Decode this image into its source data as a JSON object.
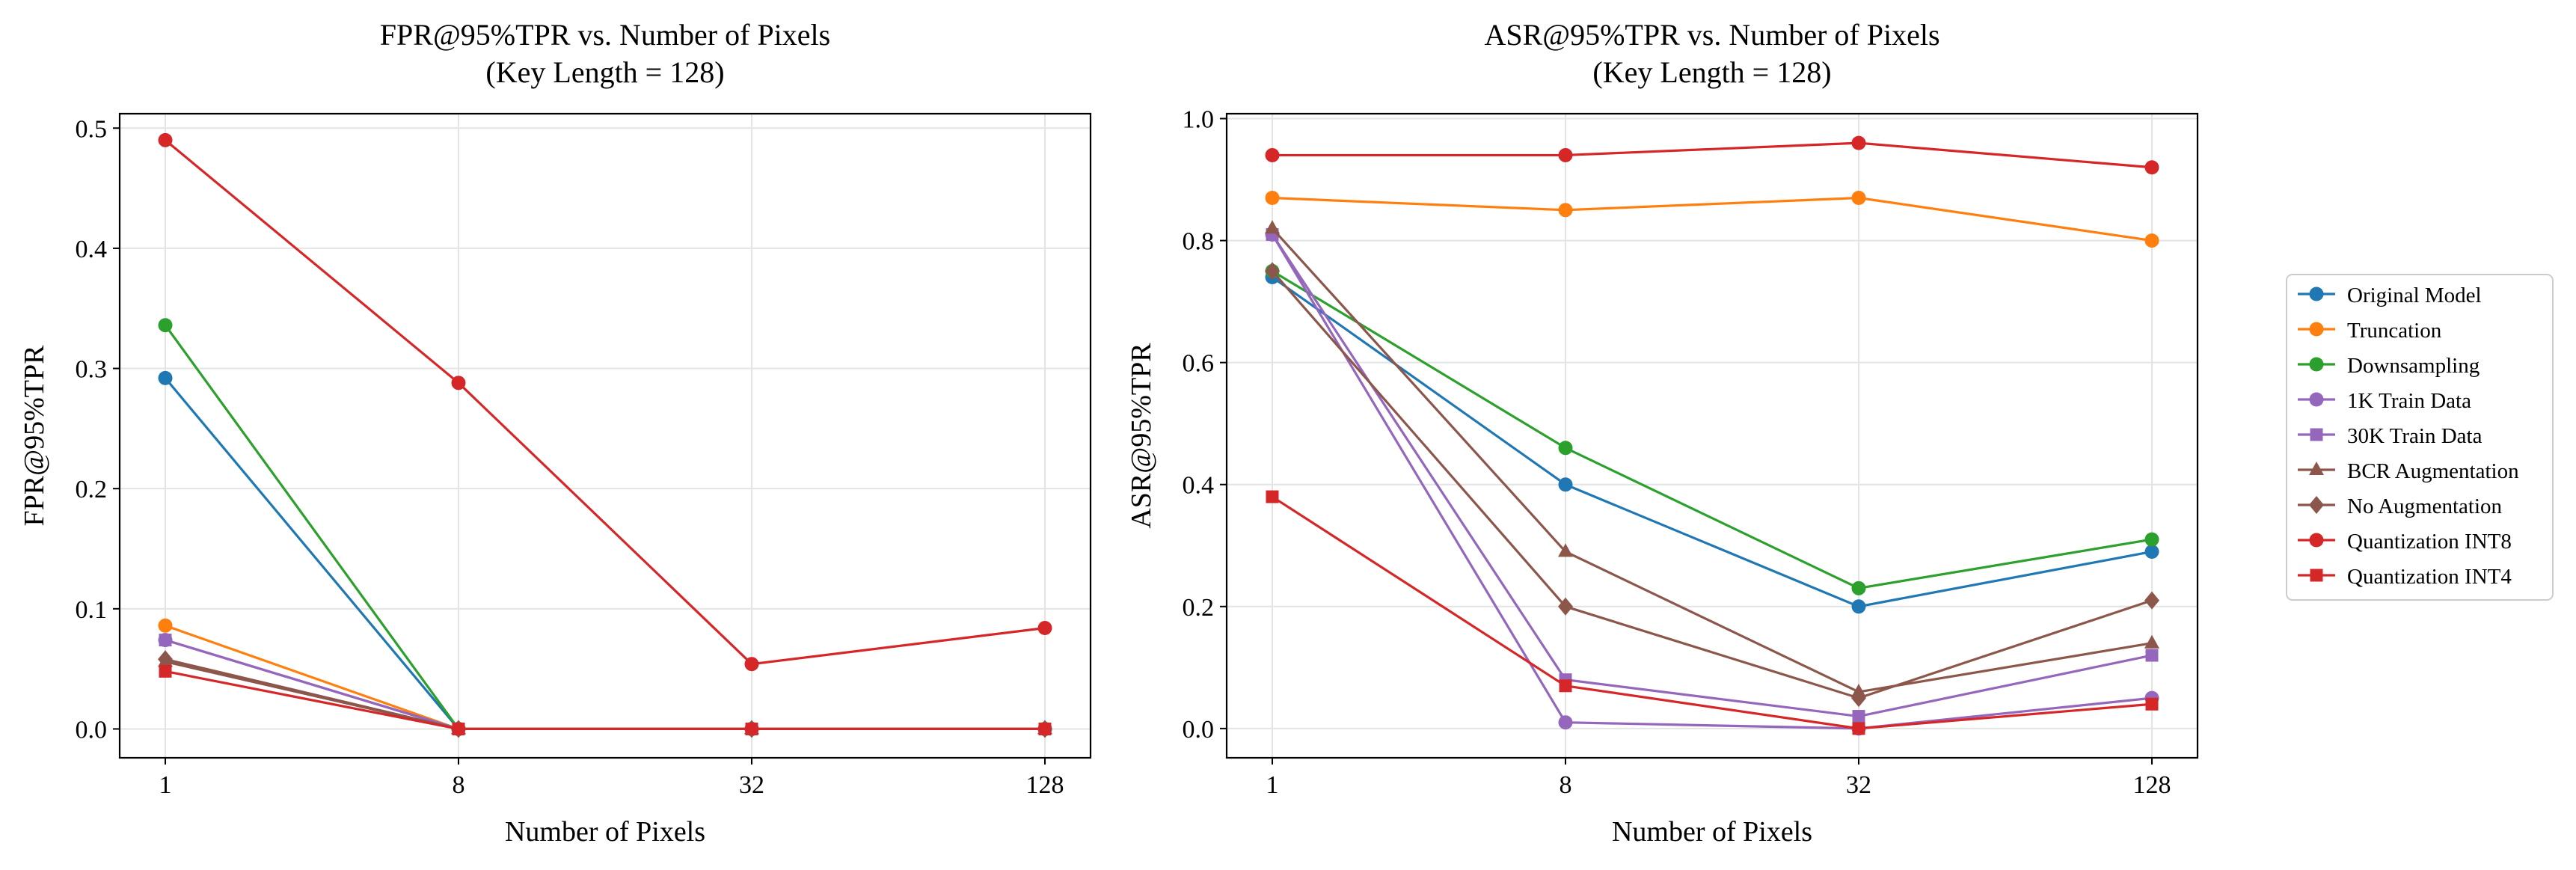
{
  "chart_data": [
    {
      "type": "line",
      "title": "FPR@95%TPR vs. Number of Pixels",
      "subtitle": "(Key Length = 128)",
      "xlabel": "Number of Pixels",
      "ylabel": "FPR@95%TPR",
      "categories": [
        "1",
        "8",
        "32",
        "128"
      ],
      "ylim": [
        -0.024,
        0.512
      ],
      "yticks": [
        "0.0",
        "0.1",
        "0.2",
        "0.3",
        "0.4",
        "0.5"
      ],
      "grid": true,
      "series": [
        {
          "name": "Original Model",
          "values": [
            0.292,
            0.0,
            0.0,
            0.0
          ]
        },
        {
          "name": "Truncation",
          "values": [
            0.086,
            0.0,
            0.0,
            0.0
          ]
        },
        {
          "name": "Downsampling",
          "values": [
            0.336,
            0.0,
            0.0,
            0.0
          ]
        },
        {
          "name": "1K Train Data",
          "values": [
            0.074,
            0.0,
            0.0,
            0.0
          ]
        },
        {
          "name": "30K Train Data",
          "values": [
            0.074,
            0.0,
            0.0,
            0.0
          ]
        },
        {
          "name": "BCR Augmentation",
          "values": [
            0.056,
            0.0,
            0.0,
            0.0
          ]
        },
        {
          "name": "No Augmentation",
          "values": [
            0.058,
            0.0,
            0.0,
            0.0
          ]
        },
        {
          "name": "Quantization INT8",
          "values": [
            0.49,
            0.288,
            0.054,
            0.084
          ]
        },
        {
          "name": "Quantization INT4",
          "values": [
            0.048,
            0.0,
            0.0,
            0.0
          ]
        }
      ]
    },
    {
      "type": "line",
      "title": "ASR@95%TPR vs. Number of Pixels",
      "subtitle": "(Key Length = 128)",
      "xlabel": "Number of Pixels",
      "ylabel": "ASR@95%TPR",
      "categories": [
        "1",
        "8",
        "32",
        "128"
      ],
      "ylim": [
        -0.048,
        1.008
      ],
      "yticks": [
        "0.0",
        "0.2",
        "0.4",
        "0.6",
        "0.8",
        "1.0"
      ],
      "grid": true,
      "series": [
        {
          "name": "Original Model",
          "values": [
            0.74,
            0.4,
            0.2,
            0.29
          ]
        },
        {
          "name": "Truncation",
          "values": [
            0.87,
            0.85,
            0.87,
            0.8
          ]
        },
        {
          "name": "Downsampling",
          "values": [
            0.75,
            0.46,
            0.23,
            0.31
          ]
        },
        {
          "name": "1K Train Data",
          "values": [
            0.81,
            0.01,
            0.0,
            0.05
          ]
        },
        {
          "name": "30K Train Data",
          "values": [
            0.81,
            0.08,
            0.02,
            0.12
          ]
        },
        {
          "name": "BCR Augmentation",
          "values": [
            0.82,
            0.29,
            0.06,
            0.14
          ]
        },
        {
          "name": "No Augmentation",
          "values": [
            0.75,
            0.2,
            0.05,
            0.21
          ]
        },
        {
          "name": "Quantization INT8",
          "values": [
            0.94,
            0.94,
            0.96,
            0.92
          ]
        },
        {
          "name": "Quantization INT4",
          "values": [
            0.38,
            0.07,
            0.0,
            0.04
          ]
        }
      ]
    }
  ],
  "legend": {
    "placement": "right",
    "entries": [
      {
        "label": "Original Model",
        "color": "#1f77b4",
        "marker": "circle"
      },
      {
        "label": "Truncation",
        "color": "#ff7f0e",
        "marker": "circle"
      },
      {
        "label": "Downsampling",
        "color": "#2ca02c",
        "marker": "circle"
      },
      {
        "label": "1K Train Data",
        "color": "#9467bd",
        "marker": "circle"
      },
      {
        "label": "30K Train Data",
        "color": "#9467bd",
        "marker": "square"
      },
      {
        "label": "BCR Augmentation",
        "color": "#8c564b",
        "marker": "triangle"
      },
      {
        "label": "No Augmentation",
        "color": "#8c564b",
        "marker": "diamond"
      },
      {
        "label": "Quantization INT8",
        "color": "#d62728",
        "marker": "circle"
      },
      {
        "label": "Quantization INT4",
        "color": "#d62728",
        "marker": "square"
      }
    ]
  }
}
